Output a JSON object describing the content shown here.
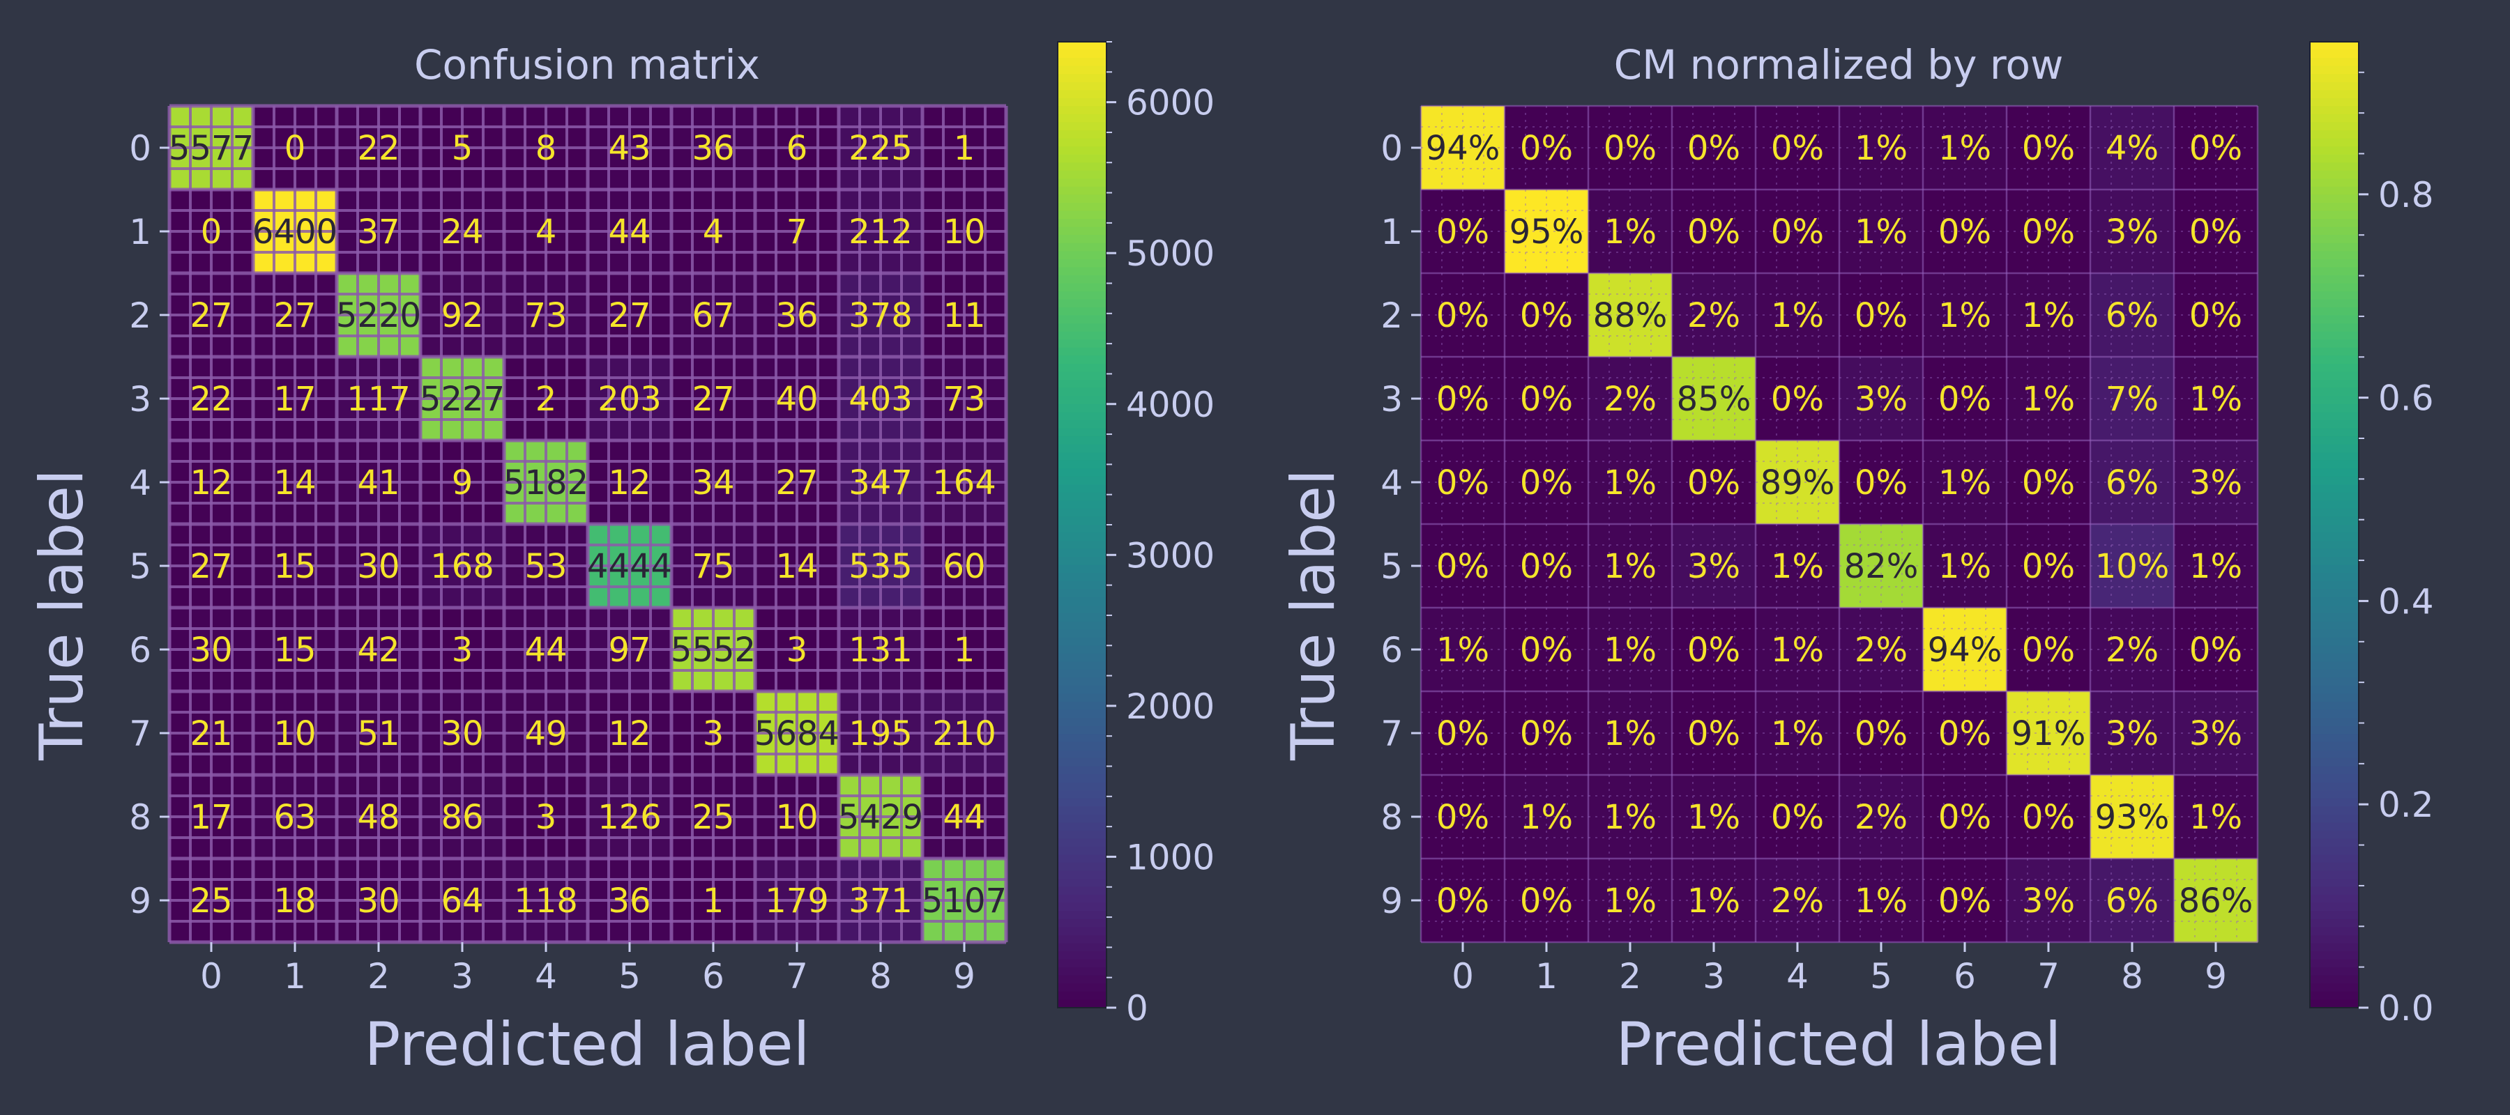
{
  "figure": {
    "background": "#313645",
    "text_color": "#c8cdef"
  },
  "chart_data": [
    {
      "type": "heatmap",
      "title": "Confusion matrix",
      "xlabel": "Predicted label",
      "ylabel": "True label",
      "x_ticks": [
        "0",
        "1",
        "2",
        "3",
        "4",
        "5",
        "6",
        "7",
        "8",
        "9"
      ],
      "y_ticks": [
        "0",
        "1",
        "2",
        "3",
        "4",
        "5",
        "6",
        "7",
        "8",
        "9"
      ],
      "values": [
        [
          5577,
          0,
          22,
          5,
          8,
          43,
          36,
          6,
          225,
          1
        ],
        [
          0,
          6400,
          37,
          24,
          4,
          44,
          4,
          7,
          212,
          10
        ],
        [
          27,
          27,
          5220,
          92,
          73,
          27,
          67,
          36,
          378,
          11
        ],
        [
          22,
          17,
          117,
          5227,
          2,
          203,
          27,
          40,
          403,
          73
        ],
        [
          12,
          14,
          41,
          9,
          5182,
          12,
          34,
          27,
          347,
          164
        ],
        [
          27,
          15,
          30,
          168,
          53,
          4444,
          75,
          14,
          535,
          60
        ],
        [
          30,
          15,
          42,
          3,
          44,
          97,
          5552,
          3,
          131,
          1
        ],
        [
          21,
          10,
          51,
          30,
          49,
          12,
          3,
          5684,
          195,
          210
        ],
        [
          17,
          63,
          48,
          86,
          3,
          126,
          25,
          10,
          5429,
          44
        ],
        [
          25,
          18,
          30,
          64,
          118,
          36,
          1,
          179,
          371,
          5107
        ]
      ],
      "labels": [
        [
          "5577",
          "0",
          "22",
          "5",
          "8",
          "43",
          "36",
          "6",
          "225",
          "1"
        ],
        [
          "0",
          "6400",
          "37",
          "24",
          "4",
          "44",
          "4",
          "7",
          "212",
          "10"
        ],
        [
          "27",
          "27",
          "5220",
          "92",
          "73",
          "27",
          "67",
          "36",
          "378",
          "11"
        ],
        [
          "22",
          "17",
          "117",
          "5227",
          "2",
          "203",
          "27",
          "40",
          "403",
          "73"
        ],
        [
          "12",
          "14",
          "41",
          "9",
          "5182",
          "12",
          "34",
          "27",
          "347",
          "164"
        ],
        [
          "27",
          "15",
          "30",
          "168",
          "53",
          "4444",
          "75",
          "14",
          "535",
          "60"
        ],
        [
          "30",
          "15",
          "42",
          "3",
          "44",
          "97",
          "5552",
          "3",
          "131",
          "1"
        ],
        [
          "21",
          "10",
          "51",
          "30",
          "49",
          "12",
          "3",
          "5684",
          "195",
          "210"
        ],
        [
          "17",
          "63",
          "48",
          "86",
          "3",
          "126",
          "25",
          "10",
          "5429",
          "44"
        ],
        [
          "25",
          "18",
          "30",
          "64",
          "118",
          "36",
          "1",
          "179",
          "371",
          "5107"
        ]
      ],
      "vmin": 0,
      "vmax": 6400,
      "colormap": "viridis",
      "grid": true,
      "colorbar": {
        "ticks": [
          0,
          1000,
          2000,
          3000,
          4000,
          5000,
          6000
        ],
        "tick_labels": [
          "0",
          "1000",
          "2000",
          "3000",
          "4000",
          "5000",
          "6000"
        ]
      }
    },
    {
      "type": "heatmap",
      "title": "CM normalized by row",
      "xlabel": "Predicted label",
      "ylabel": "True label",
      "x_ticks": [
        "0",
        "1",
        "2",
        "3",
        "4",
        "5",
        "6",
        "7",
        "8",
        "9"
      ],
      "y_ticks": [
        "0",
        "1",
        "2",
        "3",
        "4",
        "5",
        "6",
        "7",
        "8",
        "9"
      ],
      "values": [
        [
          0.94,
          0.0,
          0.0,
          0.0,
          0.0,
          0.01,
          0.01,
          0.0,
          0.04,
          0.0
        ],
        [
          0.0,
          0.95,
          0.01,
          0.0,
          0.0,
          0.01,
          0.0,
          0.0,
          0.03,
          0.0
        ],
        [
          0.0,
          0.0,
          0.88,
          0.02,
          0.01,
          0.0,
          0.01,
          0.01,
          0.06,
          0.0
        ],
        [
          0.0,
          0.0,
          0.02,
          0.85,
          0.0,
          0.03,
          0.0,
          0.01,
          0.07,
          0.01
        ],
        [
          0.0,
          0.0,
          0.01,
          0.0,
          0.89,
          0.0,
          0.01,
          0.0,
          0.06,
          0.03
        ],
        [
          0.0,
          0.0,
          0.01,
          0.03,
          0.01,
          0.82,
          0.01,
          0.0,
          0.1,
          0.01
        ],
        [
          0.01,
          0.0,
          0.01,
          0.0,
          0.01,
          0.02,
          0.94,
          0.0,
          0.02,
          0.0
        ],
        [
          0.0,
          0.0,
          0.01,
          0.0,
          0.01,
          0.0,
          0.0,
          0.91,
          0.03,
          0.03
        ],
        [
          0.0,
          0.01,
          0.01,
          0.01,
          0.0,
          0.02,
          0.0,
          0.0,
          0.93,
          0.01
        ],
        [
          0.0,
          0.0,
          0.01,
          0.01,
          0.02,
          0.01,
          0.0,
          0.03,
          0.06,
          0.86
        ]
      ],
      "labels": [
        [
          "94%",
          "0%",
          "0%",
          "0%",
          "0%",
          "1%",
          "1%",
          "0%",
          "4%",
          "0%"
        ],
        [
          "0%",
          "95%",
          "1%",
          "0%",
          "0%",
          "1%",
          "0%",
          "0%",
          "3%",
          "0%"
        ],
        [
          "0%",
          "0%",
          "88%",
          "2%",
          "1%",
          "0%",
          "1%",
          "1%",
          "6%",
          "0%"
        ],
        [
          "0%",
          "0%",
          "2%",
          "85%",
          "0%",
          "3%",
          "0%",
          "1%",
          "7%",
          "1%"
        ],
        [
          "0%",
          "0%",
          "1%",
          "0%",
          "89%",
          "0%",
          "1%",
          "0%",
          "6%",
          "3%"
        ],
        [
          "0%",
          "0%",
          "1%",
          "3%",
          "1%",
          "82%",
          "1%",
          "0%",
          "10%",
          "1%"
        ],
        [
          "1%",
          "0%",
          "1%",
          "0%",
          "1%",
          "2%",
          "94%",
          "0%",
          "2%",
          "0%"
        ],
        [
          "0%",
          "0%",
          "1%",
          "0%",
          "1%",
          "0%",
          "0%",
          "91%",
          "3%",
          "3%"
        ],
        [
          "0%",
          "1%",
          "1%",
          "1%",
          "0%",
          "2%",
          "0%",
          "0%",
          "93%",
          "1%"
        ],
        [
          "0%",
          "0%",
          "1%",
          "1%",
          "2%",
          "1%",
          "0%",
          "3%",
          "6%",
          "86%"
        ]
      ],
      "vmin": 0,
      "vmax": 0.95,
      "colormap": "viridis",
      "grid": true,
      "colorbar": {
        "ticks": [
          0.0,
          0.2,
          0.4,
          0.6,
          0.8
        ],
        "tick_labels": [
          "0.0",
          "0.2",
          "0.4",
          "0.6",
          "0.8"
        ]
      }
    }
  ]
}
